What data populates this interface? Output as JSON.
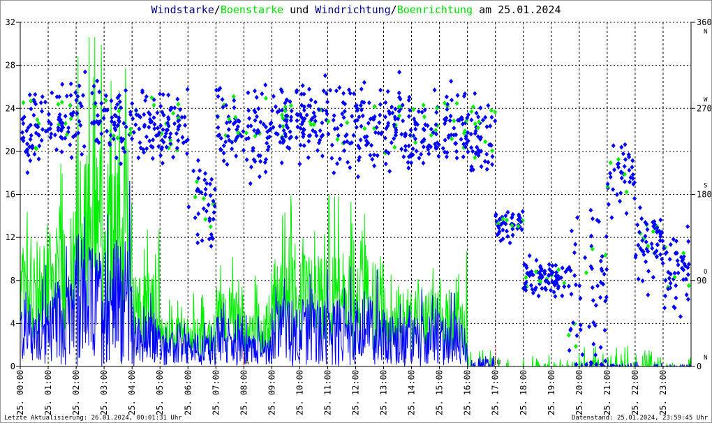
{
  "chart_data": {
    "type": "line+scatter",
    "title_parts": [
      {
        "text": "Windstarke",
        "color": "#000080"
      },
      {
        "text": "/",
        "color": "#000000"
      },
      {
        "text": "Boenstarke",
        "color": "#00e000"
      },
      {
        "text": " und ",
        "color": "#000000"
      },
      {
        "text": "Windrichtung",
        "color": "#000080"
      },
      {
        "text": "/",
        "color": "#000000"
      },
      {
        "text": "Boenrichtung",
        "color": "#00e000"
      },
      {
        "text": " am 25.01.2024",
        "color": "#000000"
      }
    ],
    "y_left": {
      "range": [
        0,
        32
      ],
      "ticks": [
        "0",
        "4",
        "8",
        "12",
        "16",
        "20",
        "24",
        "28",
        "32"
      ]
    },
    "y_right": {
      "range": [
        0,
        360
      ],
      "ticks": [
        "0",
        "90",
        "180",
        "270",
        "360"
      ],
      "compass": [
        "N",
        "O",
        "S",
        "W",
        "N"
      ]
    },
    "x_labels": [
      "25. 00:00",
      "25. 01:00",
      "25. 02:00",
      "25. 03:00",
      "25. 04:00",
      "25. 05:00",
      "25. 06:00",
      "25. 07:00",
      "25. 08:00",
      "25. 09:00",
      "25. 10:00",
      "25. 11:00",
      "25. 12:00",
      "25. 13:00",
      "25. 14:00",
      "25. 15:00",
      "25. 16:00",
      "25. 17:00",
      "25. 18:00",
      "25. 19:00",
      "25. 20:00",
      "25. 21:00",
      "25. 22:00",
      "25. 23:00"
    ],
    "markers": [
      {
        "hour": 8.0,
        "label": "A"
      },
      {
        "hour": 17.0,
        "label": "U"
      }
    ],
    "grid": true,
    "series": [
      {
        "name": "Windstarke",
        "color": "#0000ff",
        "hourly_mean": [
          4,
          5,
          7,
          7.5,
          3,
          2,
          2,
          3,
          2,
          4,
          4,
          4,
          4,
          3,
          3,
          3,
          0.6,
          0,
          0,
          0,
          0.2,
          0.2,
          0.2,
          0.1
        ]
      },
      {
        "name": "Boenstarke",
        "color": "#00ee00",
        "hourly_mean": [
          8,
          10,
          14,
          14,
          6,
          3,
          3,
          5,
          4,
          7,
          7,
          7,
          7,
          5,
          5,
          5,
          1,
          0.5,
          0.5,
          0.4,
          1.2,
          1.2,
          1.0,
          0.6
        ]
      },
      {
        "name": "Windrichtung",
        "color": "#0000ff",
        "hourly_mean_deg": [
          250,
          255,
          260,
          255,
          255,
          250,
          165,
          250,
          250,
          255,
          255,
          250,
          250,
          250,
          245,
          250,
          240,
          150,
          95,
          90,
          65,
          200,
          130,
          100
        ]
      },
      {
        "name": "Boenrichtung",
        "color": "#00ee00",
        "hourly_mean_deg": [
          255,
          260,
          265,
          260,
          255,
          250,
          170,
          255,
          255,
          255,
          255,
          250,
          250,
          250,
          250,
          255,
          245,
          150,
          95,
          90,
          70,
          210,
          130,
          105
        ]
      }
    ]
  },
  "footer": {
    "left": "Letzte Aktualisierung: 26.01.2024, 00:01:31 Uhr",
    "right": "Datenstand: 25.01.2024, 23:59:45 Uhr"
  }
}
